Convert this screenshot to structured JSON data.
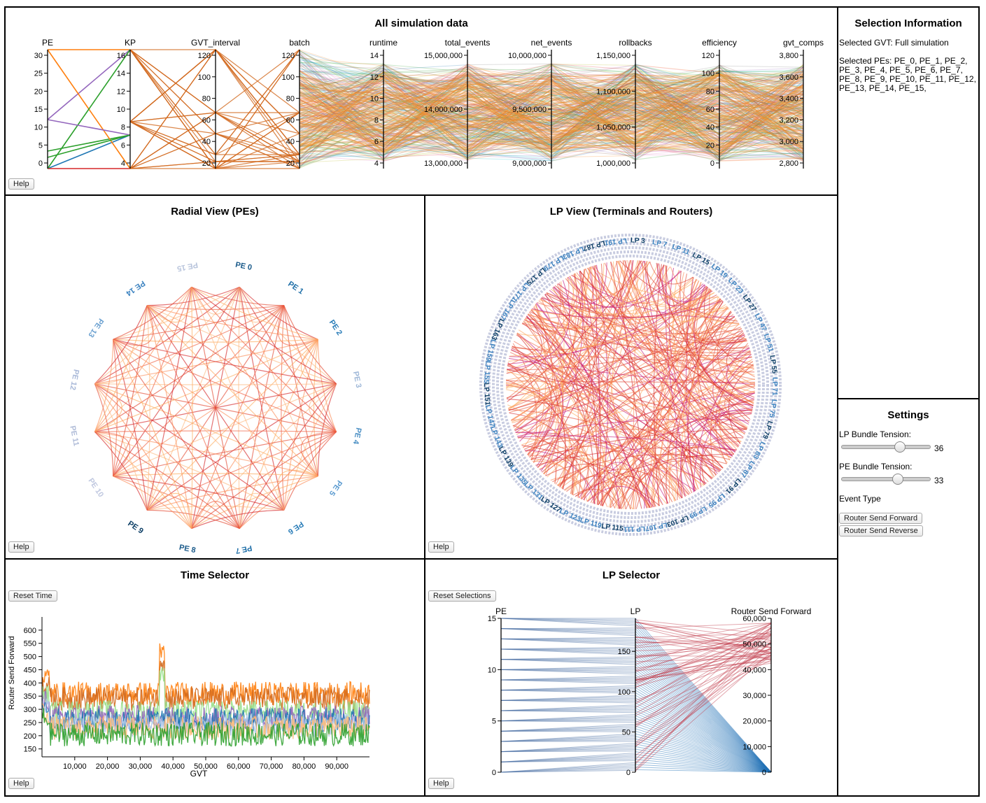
{
  "panels": {
    "all_sim": {
      "title": "All simulation data",
      "help": "Help"
    },
    "radial": {
      "title": "Radial View (PEs)",
      "help": "Help"
    },
    "lp_view": {
      "title": "LP View (Terminals and Routers)",
      "help": "Help"
    },
    "time_selector": {
      "title": "Time Selector",
      "reset": "Reset Time",
      "help": "Help"
    },
    "lp_selector": {
      "title": "LP Selector",
      "reset": "Reset Selections",
      "help": "Help"
    }
  },
  "selection_info": {
    "title": "Selection Information",
    "gvt": "Selected GVT: Full simulation",
    "pes_lines": [
      "Selected PEs: PE_0, PE_1, PE_2,",
      "PE_3, PE_4, PE_5, PE_6, PE_7,",
      "PE_8, PE_9, PE_10, PE_11, PE_12,",
      "PE_13, PE_14, PE_15,"
    ]
  },
  "settings": {
    "title": "Settings",
    "lp_tension_label": "LP Bundle Tension:",
    "lp_tension_value": "36",
    "lp_tension_fraction": 0.36,
    "pe_tension_label": "PE Bundle Tension:",
    "pe_tension_value": "33",
    "pe_tension_fraction": 0.33,
    "event_type_label": "Event Type",
    "event_buttons": [
      "Router Send Forward",
      "Router Send Reverse"
    ]
  },
  "chart_data": [
    {
      "type": "parallel_coordinates",
      "title": "All simulation data",
      "axes": [
        {
          "name": "PE",
          "range": [
            0,
            32
          ],
          "ticks": [
            "30",
            "25",
            "20",
            "15",
            "10",
            "5",
            "0"
          ]
        },
        {
          "name": "KP",
          "range": [
            4,
            16
          ],
          "ticks": [
            "16",
            "14",
            "12",
            "10",
            "8",
            "6",
            "4"
          ]
        },
        {
          "name": "GVT_interval",
          "range": [
            0,
            128
          ],
          "ticks": [
            "120",
            "100",
            "80",
            "60",
            "40",
            "20"
          ]
        },
        {
          "name": "batch",
          "range": [
            0,
            128
          ],
          "ticks": [
            "120",
            "100",
            "80",
            "60",
            "40",
            "20"
          ]
        },
        {
          "name": "runtime",
          "range": [
            2.5,
            14.5
          ],
          "ticks": [
            "14",
            "12",
            "10",
            "8",
            "6",
            "4"
          ]
        },
        {
          "name": "total_events",
          "range": [
            12400000,
            15800000
          ],
          "ticks": [
            "15,000,000",
            "14,000,000",
            "13,000,000"
          ]
        },
        {
          "name": "net_events",
          "range": [
            8550000,
            10150000
          ],
          "ticks": [
            "10,000,000",
            "9,500,000",
            "9,000,000"
          ]
        },
        {
          "name": "rollbacks",
          "range": [
            990000,
            1160000
          ],
          "ticks": [
            "1,150,000",
            "1,100,000",
            "1,050,000",
            "1,000,000"
          ]
        },
        {
          "name": "efficiency",
          "range": [
            -5,
            120
          ],
          "ticks": [
            "120",
            "100",
            "80",
            "60",
            "40",
            "20",
            "0"
          ]
        },
        {
          "name": "gvt_comps",
          "range": [
            2550,
            3900
          ],
          "ticks": [
            "3,800",
            "3,600",
            "3,400",
            "3,200",
            "3,000",
            "2,800"
          ]
        }
      ]
    },
    {
      "type": "chord",
      "title": "Radial View (PEs)",
      "nodes": [
        "PE 0",
        "PE 1",
        "PE 2",
        "PE 3",
        "PE 4",
        "PE 5",
        "PE 6",
        "PE 7",
        "PE 8",
        "PE 9",
        "PE 10",
        "PE 11",
        "PE 12",
        "PE 13",
        "PE 14",
        "PE 15"
      ]
    },
    {
      "type": "chord",
      "title": "LP View (Terminals and Routers)",
      "visible_labels": [
        "LP 3",
        "LP 7",
        "LP 11",
        "LP 15",
        "LP 19",
        "LP 23",
        "LP 27",
        "LP 47",
        "LP 51",
        "LP 55",
        "LP 71",
        "LP 75",
        "LP 79",
        "LP 83",
        "LP 87",
        "LP 91",
        "LP 95",
        "LP 99",
        "LP 103",
        "LP 107",
        "LP 111",
        "LP 115",
        "LP 119",
        "LP 123",
        "LP 127",
        "LP 131",
        "LP 135",
        "LP 139",
        "LP 143",
        "LP 147",
        "LP 151",
        "LP 155",
        "LP 159",
        "LP 163",
        "LP 167",
        "LP 171",
        "LP 175",
        "LP 179",
        "LP 183",
        "LP 187",
        "LP 191"
      ]
    },
    {
      "type": "line",
      "title": "Time Selector",
      "xlabel": "GVT",
      "ylabel": "Router Send Forward",
      "xlim": [
        0,
        100000
      ],
      "ylim": [
        120,
        650
      ],
      "xticks": [
        "10,000",
        "20,000",
        "30,000",
        "40,000",
        "50,000",
        "60,000",
        "70,000",
        "80,000",
        "90,000"
      ],
      "yticks": [
        "600",
        "550",
        "500",
        "450",
        "400",
        "350",
        "300",
        "250",
        "200",
        "150"
      ],
      "series": [
        {
          "color": "#ff7f0e",
          "mean": 360
        },
        {
          "color": "#d2691e",
          "mean": 340
        },
        {
          "color": "#98df8a",
          "mean": 290
        },
        {
          "color": "#9467bd",
          "mean": 270
        },
        {
          "color": "#1f77b4",
          "mean": 260
        },
        {
          "color": "#aec7e8",
          "mean": 240
        },
        {
          "color": "#ffbb78",
          "mean": 230
        },
        {
          "color": "#2ca02c",
          "mean": 205
        }
      ]
    },
    {
      "type": "parallel_coordinates",
      "title": "LP Selector",
      "axes": [
        {
          "name": "PE",
          "range": [
            0,
            15
          ],
          "ticks": [
            "15",
            "10",
            "5",
            "0"
          ]
        },
        {
          "name": "LP",
          "range": [
            0,
            191
          ],
          "ticks": [
            "150",
            "100",
            "50",
            "0"
          ]
        },
        {
          "name": "Router Send Forward",
          "range": [
            0,
            60000
          ],
          "ticks": [
            "60,000",
            "50,000",
            "40,000",
            "30,000",
            "20,000",
            "10,000",
            "0"
          ]
        }
      ]
    }
  ]
}
